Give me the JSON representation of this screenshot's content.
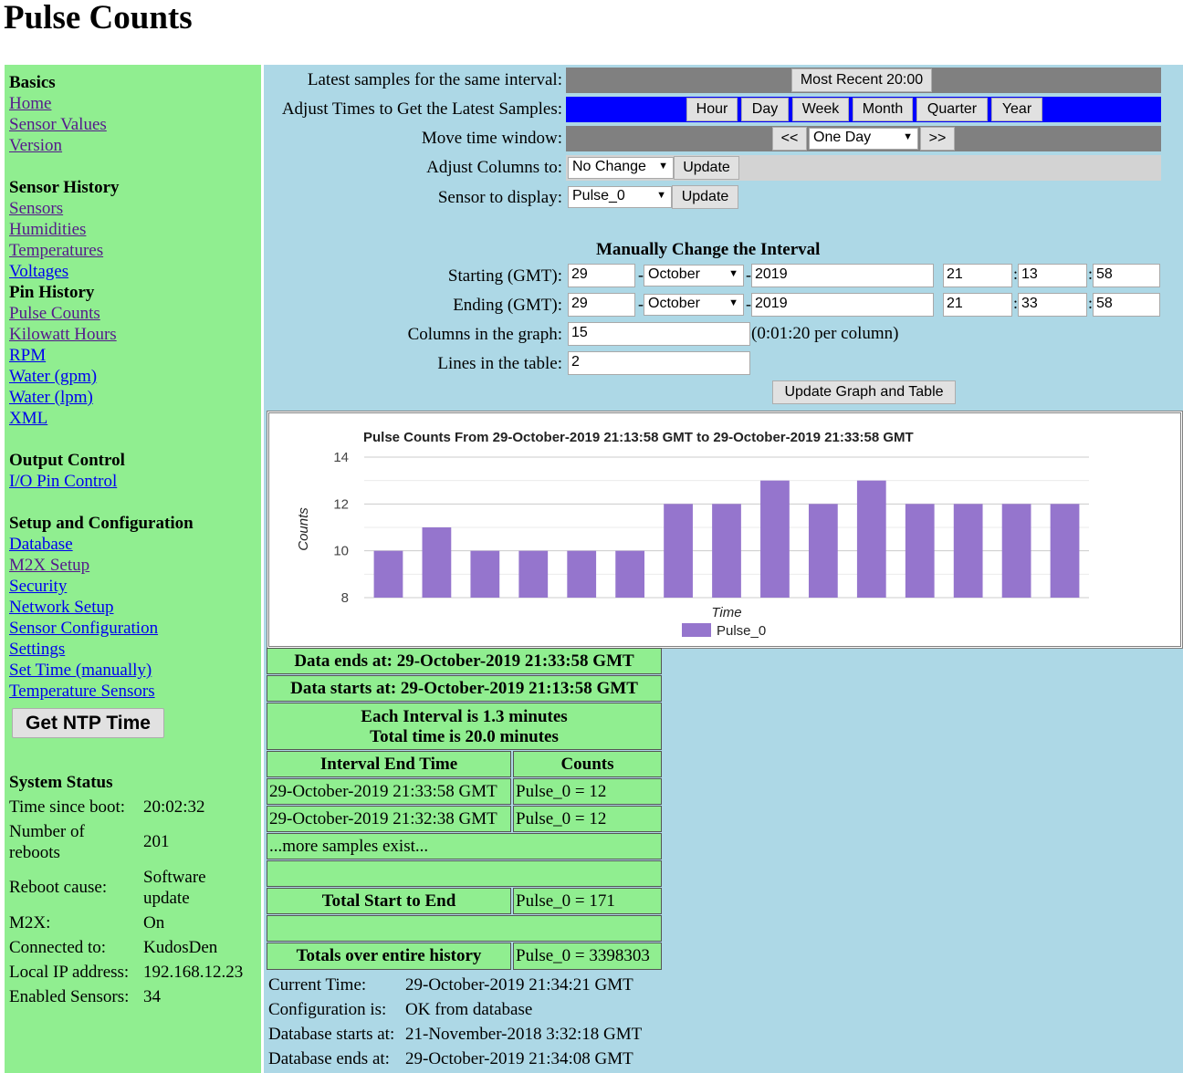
{
  "page_title": "Pulse Counts",
  "sidebar": {
    "basics": {
      "heading": "Basics",
      "home": "Home",
      "sensor_values": "Sensor Values",
      "version": "Version"
    },
    "sensor_history": {
      "heading": "Sensor History",
      "sensors": "Sensors",
      "humidities": "Humidities",
      "temperatures": "Temperatures",
      "voltages": "Voltages"
    },
    "pin_history": {
      "heading": "Pin History",
      "pulse_counts": "Pulse Counts",
      "kilowatt_hours": "Kilowatt Hours",
      "rpm": "RPM",
      "water_gpm": "Water (gpm)",
      "water_lpm": "Water (lpm)",
      "xml": "XML"
    },
    "output_control": {
      "heading": "Output Control",
      "io_pin_control": "I/O Pin Control"
    },
    "setup": {
      "heading": "Setup and Configuration",
      "database": "Database",
      "m2x_setup": "M2X Setup",
      "security": "Security",
      "network_setup": "Network Setup",
      "sensor_configuration": "Sensor Configuration",
      "settings": "Settings",
      "set_time": "Set Time (manually)",
      "temperature_sensors": "Temperature Sensors"
    },
    "ntp_button": "Get NTP Time",
    "system_status": {
      "heading": "System Status",
      "time_since_boot_label": "Time since boot:",
      "time_since_boot": "20:02:32",
      "reboots_label_1": "Number of",
      "reboots_label_2": "reboots",
      "reboots": "201",
      "reboot_cause_label": "Reboot cause:",
      "reboot_cause_1": "Software",
      "reboot_cause_2": "update",
      "m2x_label": "M2X:",
      "m2x": "On",
      "connected_label": "Connected to:",
      "connected": "KudosDen",
      "ip_label": "Local IP address:",
      "ip": "192.168.12.23",
      "enabled_label": "Enabled Sensors:",
      "enabled": "34"
    }
  },
  "controls": {
    "latest_label": "Latest samples for the same interval:",
    "most_recent_button": "Most Recent 20:00",
    "adjust_times_label": "Adjust Times to Get the Latest Samples:",
    "period_buttons": [
      "Hour",
      "Day",
      "Week",
      "Month",
      "Quarter",
      "Year"
    ],
    "move_window_label": "Move time window:",
    "prev_button": "<<",
    "window_select": "One Day",
    "next_button": ">>",
    "adjust_columns_label": "Adjust Columns to:",
    "columns_select": "No Change",
    "columns_update": "Update",
    "sensor_label": "Sensor to display:",
    "sensor_select": "Pulse_0",
    "sensor_update": "Update",
    "manual_heading": "Manually Change the Interval",
    "starting_label": "Starting (GMT):",
    "start": {
      "day": "29",
      "month": "October",
      "year": "2019",
      "hour": "21",
      "minute": "13",
      "second": "58"
    },
    "ending_label": "Ending (GMT):",
    "end": {
      "day": "29",
      "month": "October",
      "year": "2019",
      "hour": "21",
      "minute": "33",
      "second": "58"
    },
    "columns_graph_label": "Columns in the graph:",
    "columns_graph": "15",
    "per_column": "(0:01:20 per column)",
    "lines_table_label": "Lines in the table:",
    "lines_table": "2",
    "update_button": "Update Graph and Table"
  },
  "chart_data": {
    "type": "bar",
    "title": "Pulse Counts From 29-October-2019 21:13:58 GMT to 29-October-2019 21:33:58 GMT",
    "xlabel": "Time",
    "ylabel": "Counts",
    "ylim": [
      8,
      14
    ],
    "yticks": [
      "8",
      "10",
      "12",
      "14"
    ],
    "grid": true,
    "legend_position": "bottom",
    "color": "#9575cd",
    "series": [
      {
        "name": "Pulse_0",
        "values": [
          10,
          11,
          10,
          10,
          10,
          10,
          12,
          12,
          13,
          12,
          13,
          12,
          12,
          12,
          12
        ]
      }
    ]
  },
  "table": {
    "data_ends": "Data ends at: 29-October-2019 21:33:58 GMT",
    "data_starts": "Data starts at: 29-October-2019 21:13:58 GMT",
    "interval": "Each Interval is 1.3 minutes",
    "total_time": "Total time is 20.0 minutes",
    "col_time": "Interval End Time",
    "col_counts": "Counts",
    "rows": [
      {
        "time": "29-October-2019 21:33:58 GMT",
        "counts": "Pulse_0 = 12"
      },
      {
        "time": "29-October-2019 21:32:38 GMT",
        "counts": "Pulse_0 = 12"
      }
    ],
    "more": "...more samples exist...",
    "total_label": "Total Start to End",
    "total_value": "Pulse_0 = 171",
    "history_label": "Totals over entire history",
    "history_value": "Pulse_0 = 3398303"
  },
  "status": {
    "current_time_label": "Current Time:",
    "current_time": "29-October-2019 21:34:21 GMT",
    "config_label": "Configuration is:",
    "config": "OK from database",
    "db_starts_label": "Database starts at:",
    "db_starts": "21-November-2018 3:32:18 GMT",
    "db_ends_label": "Database ends at:",
    "db_ends": "29-October-2019 21:34:08 GMT"
  }
}
